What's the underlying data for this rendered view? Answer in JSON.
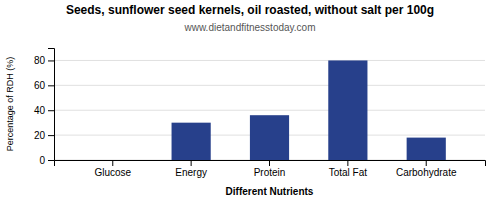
{
  "chart_data": {
    "type": "bar",
    "title": "Seeds, sunflower seed kernels, oil roasted, without salt per 100g",
    "subtitle": "www.dietandfitnesstoday.com",
    "categories": [
      "Glucose",
      "Energy",
      "Protein",
      "Total Fat",
      "Carbohydrate"
    ],
    "values": [
      0,
      30,
      36,
      80,
      18
    ],
    "color": "#27408B",
    "xlabel": "Different Nutrients",
    "ylabel": "Percentage of RDH (%)",
    "ylim": [
      0,
      90
    ],
    "yticks": [
      0,
      20,
      40,
      60,
      80
    ],
    "grid": true
  }
}
